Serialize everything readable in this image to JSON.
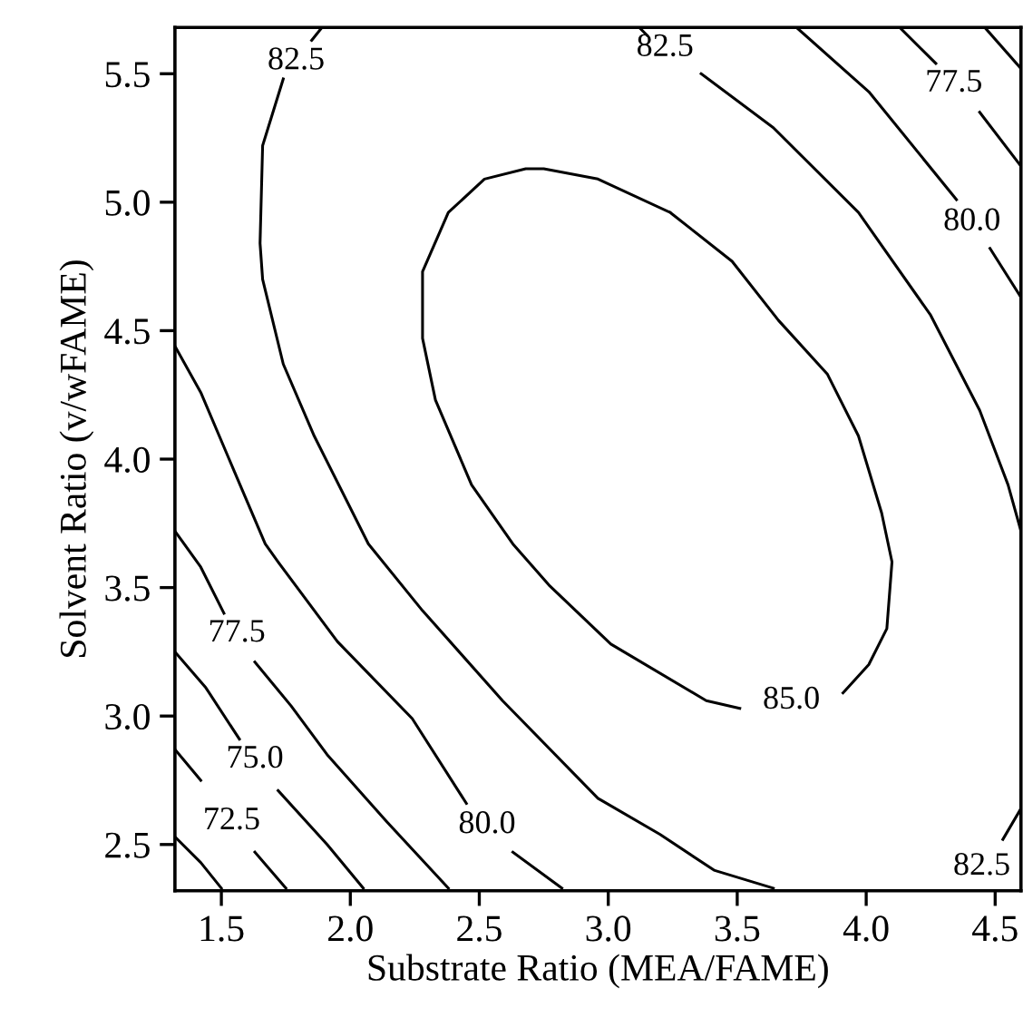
{
  "chart_data": {
    "type": "line",
    "xlabel": "Substrate Ratio (MEA/FAME)",
    "ylabel": "Solvent Ratio (v/wFAME)",
    "xlim": [
      1.32,
      4.6
    ],
    "ylim": [
      2.32,
      5.68
    ],
    "xticks": [
      1.5,
      {
        "value": 2,
        "label": "2.0"
      },
      2.5,
      {
        "value": 3,
        "label": "3.0"
      },
      3.5,
      {
        "value": 4,
        "label": "4.0"
      },
      4.5
    ],
    "yticks": [
      2.5,
      {
        "value": 3,
        "label": "3.0"
      },
      3.5,
      {
        "value": 4,
        "label": "4.0"
      },
      4.5,
      {
        "value": 5,
        "label": "5.0"
      },
      5.5
    ],
    "grid": false,
    "legend": false,
    "marker": "none",
    "line_style": "solid",
    "series": [
      {
        "color": "#000000",
        "x": [
          1.32,
          1.42,
          1.5
        ],
        "values": [
          2.53,
          2.43,
          2.33
        ]
      },
      {
        "name": "72.5",
        "color": "#000000",
        "x": [
          1.32,
          1.42,
          1.54,
          1.63,
          1.75
        ],
        "values": [
          2.87,
          2.75,
          null,
          2.47,
          2.33
        ]
      },
      {
        "name": "75.0",
        "color": "#000000",
        "x": [
          1.32,
          1.44,
          1.57,
          1.63,
          1.72,
          1.91,
          2.05
        ],
        "values": [
          3.25,
          3.11,
          2.91,
          null,
          2.71,
          2.5,
          2.33
        ]
      },
      {
        "name": "77.5",
        "color": "#000000",
        "x": [
          1.32,
          1.42,
          1.51,
          1.56,
          1.63,
          1.77,
          1.91,
          2.14,
          2.38
        ],
        "values": [
          3.72,
          3.58,
          3.4,
          null,
          3.21,
          3.04,
          2.85,
          2.59,
          2.33
        ]
      },
      {
        "name": "80.0",
        "color": "#000000",
        "x": [
          1.32,
          1.42,
          1.53,
          1.67,
          1.72,
          1.95,
          2.24,
          2.45,
          2.53,
          2.63,
          2.82
        ],
        "values": [
          4.44,
          4.26,
          4.0,
          3.67,
          3.6,
          3.29,
          2.99,
          2.66,
          null,
          2.47,
          2.33
        ]
      },
      {
        "name": "82.5",
        "color": "#000000",
        "x": [
          1.89,
          1.85,
          1.79,
          1.74,
          1.66,
          1.65,
          1.66,
          1.74,
          1.86,
          2.07,
          2.28,
          2.59,
          2.96,
          3.2,
          3.41,
          3.64
        ],
        "values": [
          5.68,
          5.63,
          null,
          5.48,
          5.22,
          4.84,
          4.7,
          4.37,
          4.09,
          3.67,
          3.41,
          3.06,
          2.68,
          2.54,
          2.4,
          2.33
        ]
      },
      {
        "name": "85.0",
        "color": "#000000",
        "x": [
          3.24,
          2.96,
          2.75,
          2.68,
          2.52,
          2.38,
          2.28,
          2.28,
          2.33,
          2.47,
          2.63,
          2.77,
          3.01,
          3.38,
          3.51,
          3.71,
          3.91,
          4.01,
          4.08,
          4.1,
          4.06,
          3.97,
          3.85,
          3.66,
          3.48,
          3.24
        ],
        "values": [
          4.96,
          5.09,
          5.13,
          5.13,
          5.09,
          4.96,
          4.73,
          4.47,
          4.23,
          3.9,
          3.67,
          3.51,
          3.28,
          3.06,
          3.03,
          null,
          3.09,
          3.2,
          3.34,
          3.6,
          3.79,
          4.09,
          4.33,
          4.54,
          4.77,
          4.96
        ]
      },
      {
        "name": "82.5",
        "color": "#000000",
        "x": [
          3.12,
          3.15,
          3.22,
          3.36,
          3.64,
          3.97,
          4.25,
          4.44,
          4.55,
          4.6
        ],
        "values": [
          5.68,
          5.65,
          null,
          5.5,
          5.29,
          4.96,
          4.56,
          4.19,
          3.9,
          3.72
        ]
      },
      {
        "name": "82.5",
        "color": "#000000",
        "x": [
          4.53,
          4.6
        ],
        "values": [
          2.52,
          2.64
        ]
      },
      {
        "name": "80.0",
        "color": "#000000",
        "x": [
          3.73,
          4.01,
          4.35,
          4.41,
          4.48,
          4.6
        ],
        "values": [
          5.68,
          5.43,
          5.01,
          null,
          4.82,
          4.63
        ]
      },
      {
        "name": "77.5",
        "color": "#000000",
        "x": [
          4.13,
          4.27,
          4.34,
          4.44,
          4.6
        ],
        "values": [
          5.68,
          5.54,
          null,
          5.35,
          5.14
        ]
      },
      {
        "color": "#000000",
        "x": [
          4.46,
          4.6
        ],
        "values": [
          5.68,
          5.52
        ]
      }
    ]
  }
}
